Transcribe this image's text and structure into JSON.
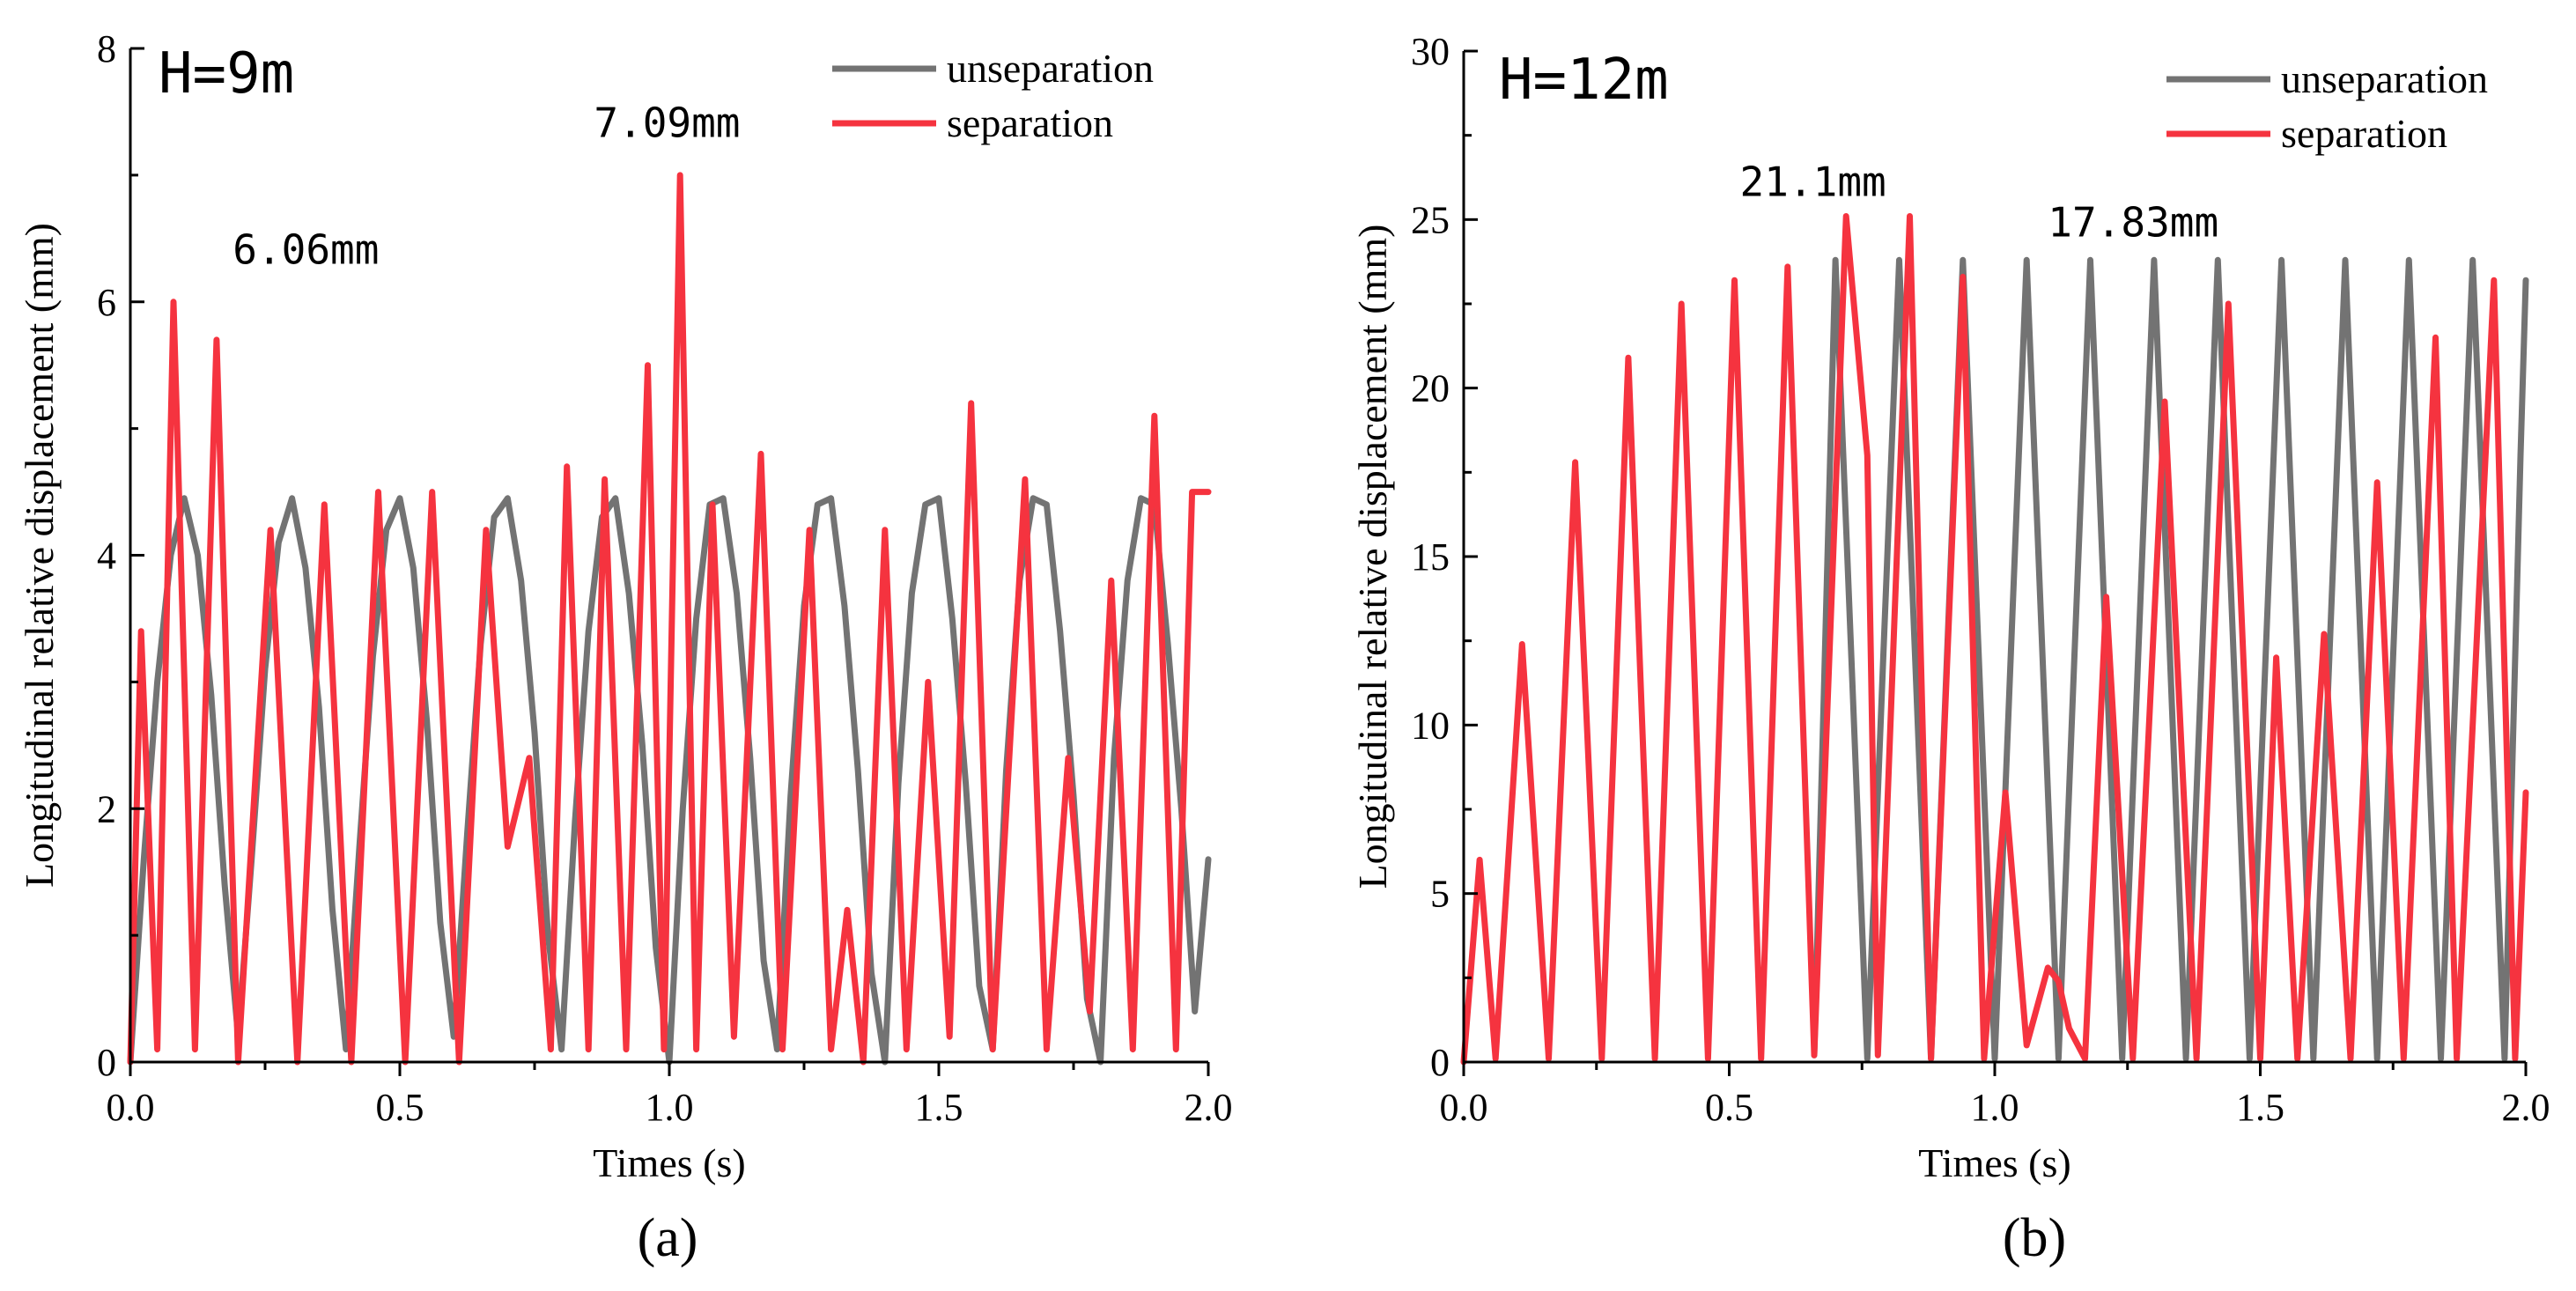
{
  "colors": {
    "unseparation": "#737373",
    "separation": "#f5333f"
  },
  "chart_data": [
    {
      "type": "line",
      "panel_label": "(a)",
      "title": "H=9m",
      "xlabel": "Times (s)",
      "ylabel": "Longitudinal relative displacement (mm)",
      "xlim": [
        0,
        2.0
      ],
      "ylim": [
        0,
        8
      ],
      "xticks": [
        "0.0",
        "0.5",
        "1.0",
        "1.5",
        "2.0"
      ],
      "yticks": [
        "0",
        "2",
        "4",
        "6",
        "8"
      ],
      "legend": [
        "unseparation",
        "separation"
      ],
      "legend_position": "top-right",
      "annotations": [
        {
          "text": "6.06mm",
          "x": 0.19,
          "y": 6.3
        },
        {
          "text": "7.09mm",
          "x": 0.86,
          "y": 7.3
        }
      ],
      "series": [
        {
          "name": "unseparation",
          "x": [
            0.0,
            0.025,
            0.05,
            0.075,
            0.1,
            0.125,
            0.15,
            0.175,
            0.2,
            0.225,
            0.25,
            0.275,
            0.3,
            0.325,
            0.35,
            0.375,
            0.4,
            0.425,
            0.45,
            0.475,
            0.5,
            0.525,
            0.55,
            0.575,
            0.6,
            0.625,
            0.65,
            0.675,
            0.7,
            0.725,
            0.75,
            0.775,
            0.8,
            0.825,
            0.85,
            0.875,
            0.9,
            0.925,
            0.95,
            0.975,
            1.0,
            1.025,
            1.05,
            1.075,
            1.1,
            1.125,
            1.15,
            1.175,
            1.2,
            1.225,
            1.25,
            1.275,
            1.3,
            1.325,
            1.35,
            1.375,
            1.4,
            1.425,
            1.45,
            1.475,
            1.5,
            1.525,
            1.55,
            1.575,
            1.6,
            1.625,
            1.65,
            1.675,
            1.7,
            1.725,
            1.75,
            1.775,
            1.8,
            1.825,
            1.85,
            1.875,
            1.9,
            1.925,
            1.95,
            1.975,
            2.0
          ],
          "y": [
            0,
            1.6,
            3.0,
            4.0,
            4.45,
            4.0,
            2.9,
            1.4,
            0.2,
            1.6,
            3.1,
            4.1,
            4.45,
            3.9,
            2.8,
            1.2,
            0.1,
            1.7,
            3.2,
            4.2,
            4.45,
            3.9,
            2.7,
            1.1,
            0.2,
            1.8,
            3.3,
            4.3,
            4.45,
            3.8,
            2.6,
            1.0,
            0.1,
            1.9,
            3.4,
            4.3,
            4.45,
            3.7,
            2.5,
            0.9,
            0.0,
            2.0,
            3.5,
            4.4,
            4.45,
            3.7,
            2.4,
            0.8,
            0.1,
            2.1,
            3.6,
            4.4,
            4.45,
            3.6,
            2.3,
            0.7,
            0.0,
            2.2,
            3.7,
            4.4,
            4.45,
            3.5,
            2.2,
            0.6,
            0.1,
            2.3,
            3.8,
            4.45,
            4.4,
            3.4,
            2.1,
            0.5,
            0.0,
            2.4,
            3.8,
            4.45,
            4.4,
            3.3,
            2.0,
            0.4,
            1.6
          ]
        },
        {
          "name": "separation",
          "x": [
            0.0,
            0.02,
            0.05,
            0.08,
            0.12,
            0.16,
            0.2,
            0.26,
            0.31,
            0.36,
            0.41,
            0.46,
            0.51,
            0.56,
            0.61,
            0.66,
            0.7,
            0.74,
            0.78,
            0.81,
            0.85,
            0.88,
            0.92,
            0.96,
            0.99,
            1.02,
            1.05,
            1.08,
            1.12,
            1.17,
            1.21,
            1.26,
            1.3,
            1.33,
            1.36,
            1.4,
            1.44,
            1.48,
            1.52,
            1.56,
            1.6,
            1.66,
            1.7,
            1.74,
            1.78,
            1.82,
            1.86,
            1.9,
            1.94,
            1.97,
            2.0
          ],
          "y": [
            0,
            3.4,
            0.1,
            6.0,
            0.1,
            5.7,
            0.0,
            4.2,
            0.0,
            4.4,
            0.0,
            4.5,
            0.0,
            4.5,
            0.0,
            4.2,
            1.7,
            2.4,
            0.1,
            4.7,
            0.1,
            4.6,
            0.1,
            5.5,
            0.1,
            7.0,
            0.1,
            4.4,
            0.2,
            4.8,
            0.1,
            4.2,
            0.1,
            1.2,
            0.0,
            4.2,
            0.1,
            3.0,
            0.2,
            5.2,
            0.1,
            4.6,
            0.1,
            2.4,
            0.4,
            3.8,
            0.1,
            5.1,
            0.1,
            4.5,
            4.5
          ]
        }
      ]
    },
    {
      "type": "line",
      "panel_label": "(b)",
      "title": "H=12m",
      "xlabel": "Times (s)",
      "ylabel": "Longitudinal relative displacement (mm)",
      "xlim": [
        0,
        2.0
      ],
      "ylim": [
        0,
        30
      ],
      "xticks": [
        "0.0",
        "0.5",
        "1.0",
        "1.5",
        "2.0"
      ],
      "yticks": [
        "0",
        "5",
        "10",
        "15",
        "20",
        "25",
        "30"
      ],
      "legend": [
        "unseparation",
        "separation"
      ],
      "legend_position": "top-right",
      "annotations": [
        {
          "text": "21.1mm",
          "x": 0.52,
          "y": 25.7
        },
        {
          "text": "17.83mm",
          "x": 1.1,
          "y": 24.5
        }
      ],
      "series": [
        {
          "name": "unseparation",
          "x": [
            0.66,
            0.7,
            0.73,
            0.76,
            0.79,
            0.82,
            0.85,
            0.88,
            0.91,
            0.94,
            0.97,
            1.0,
            1.03,
            1.06,
            1.09,
            1.12,
            1.15,
            1.18,
            1.21,
            1.24,
            1.27,
            1.3,
            1.33,
            1.36,
            1.39,
            1.42,
            1.45,
            1.48,
            1.51,
            1.54,
            1.57,
            1.6,
            1.63,
            1.66,
            1.69,
            1.72,
            1.75,
            1.78,
            1.81,
            1.84,
            1.87,
            1.9,
            1.93,
            1.96,
            1.99,
            2.0
          ],
          "y": [
            0.2,
            23.8,
            12.0,
            0.1,
            12.0,
            23.8,
            12.0,
            0.1,
            12.0,
            23.8,
            12.0,
            0.1,
            12.0,
            23.8,
            12.0,
            0.1,
            12.0,
            23.8,
            12.0,
            0.1,
            12.0,
            23.8,
            12.0,
            0.1,
            12.0,
            23.8,
            12.0,
            0.1,
            12.0,
            23.8,
            12.0,
            0.1,
            12.0,
            23.8,
            12.0,
            0.1,
            12.0,
            23.8,
            12.0,
            0.1,
            12.0,
            23.8,
            12.0,
            0.1,
            18.0,
            23.2
          ]
        },
        {
          "name": "separation",
          "x": [
            0.0,
            0.03,
            0.06,
            0.11,
            0.16,
            0.21,
            0.26,
            0.31,
            0.36,
            0.41,
            0.46,
            0.51,
            0.56,
            0.61,
            0.66,
            0.72,
            0.76,
            0.78,
            0.84,
            0.88,
            0.94,
            0.98,
            1.02,
            1.06,
            1.1,
            1.12,
            1.14,
            1.17,
            1.21,
            1.26,
            1.32,
            1.38,
            1.44,
            1.5,
            1.53,
            1.57,
            1.62,
            1.67,
            1.72,
            1.77,
            1.83,
            1.87,
            1.94,
            1.98,
            2.0
          ],
          "y": [
            0,
            6.0,
            0.1,
            12.4,
            0.1,
            17.8,
            0.1,
            20.9,
            0.1,
            22.5,
            0.1,
            23.2,
            0.1,
            23.6,
            0.2,
            25.1,
            18.0,
            0.2,
            25.1,
            0.1,
            23.3,
            0.1,
            8.0,
            0.5,
            2.8,
            2.4,
            1.0,
            0.1,
            13.8,
            0.1,
            19.6,
            0.1,
            22.5,
            0.1,
            12.0,
            0.1,
            12.7,
            0.1,
            17.2,
            0.1,
            21.5,
            0.1,
            23.2,
            0.1,
            8.0
          ]
        }
      ]
    }
  ]
}
